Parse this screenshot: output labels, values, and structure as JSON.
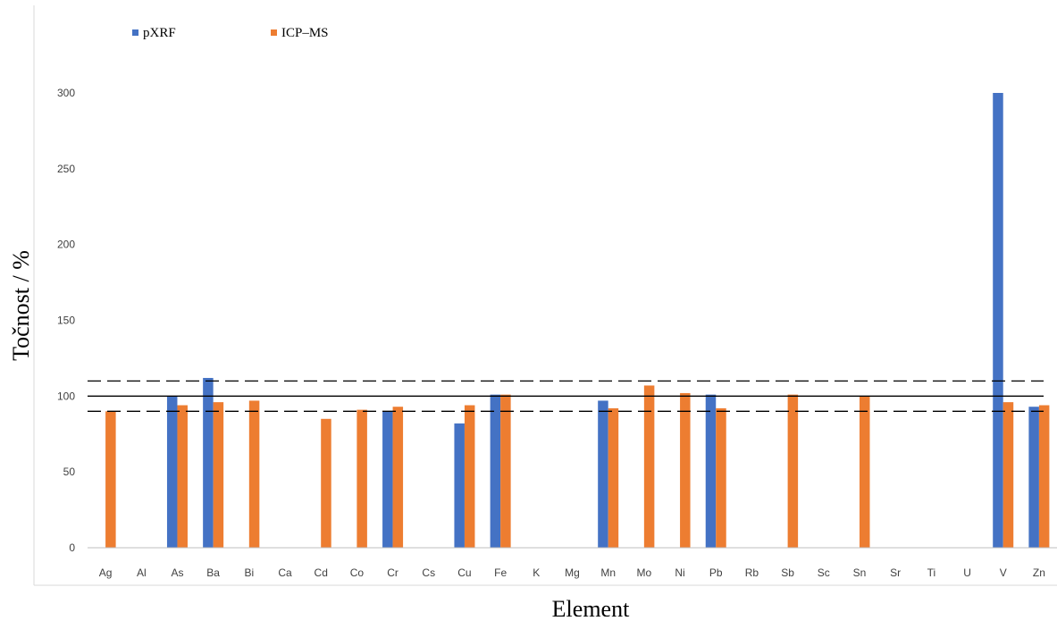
{
  "chart_data": {
    "type": "bar",
    "xlabel": "Element",
    "ylabel": "Točnost / %",
    "ylim": [
      0,
      300
    ],
    "yticks": [
      0,
      50,
      100,
      150,
      200,
      250,
      300
    ],
    "categories": [
      "Ag",
      "Al",
      "As",
      "Ba",
      "Bi",
      "Ca",
      "Cd",
      "Co",
      "Cr",
      "Cs",
      "Cu",
      "Fe",
      "K",
      "Mg",
      "Mn",
      "Mo",
      "Ni",
      "Pb",
      "Rb",
      "Sb",
      "Sc",
      "Sn",
      "Sr",
      "Ti",
      "U",
      "V",
      "Zn"
    ],
    "series": [
      {
        "name": "pXRF",
        "color": "#4472C4",
        "values": [
          null,
          null,
          100,
          112,
          null,
          null,
          null,
          null,
          90,
          null,
          82,
          101,
          null,
          null,
          97,
          null,
          null,
          101,
          null,
          null,
          null,
          null,
          null,
          null,
          null,
          300,
          93
        ]
      },
      {
        "name": "ICP–MS",
        "color": "#ED7D31",
        "values": [
          90,
          null,
          94,
          96,
          97,
          null,
          85,
          91,
          93,
          null,
          94,
          101,
          null,
          null,
          92,
          107,
          102,
          92,
          null,
          101,
          null,
          100,
          null,
          null,
          null,
          96,
          94
        ]
      }
    ],
    "reference_lines": [
      {
        "value": 110,
        "style": "dashed"
      },
      {
        "value": 100,
        "style": "solid"
      },
      {
        "value": 90,
        "style": "dashed"
      }
    ],
    "legend_position": "top-left",
    "grid": false
  }
}
